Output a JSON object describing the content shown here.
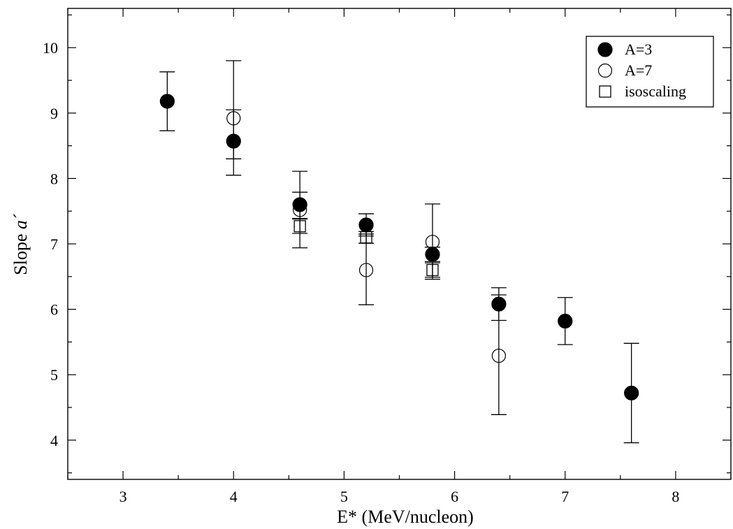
{
  "chart_data": {
    "type": "scatter",
    "xlabel": "E* (MeV/nucleon)",
    "ylabel_main": "Slope ",
    "ylabel_italic": "a´",
    "xlim": [
      2.5,
      8.5
    ],
    "ylim": [
      3.4,
      10.6
    ],
    "xticks": [
      3,
      4,
      5,
      6,
      7,
      8
    ],
    "yticks": [
      4,
      5,
      6,
      7,
      8,
      9,
      10
    ],
    "grid": false,
    "legend_position": "top-right",
    "series": [
      {
        "name": "A=3",
        "marker": "filled-circle",
        "points": [
          {
            "x": 3.4,
            "y": 9.18,
            "err_low": 8.73,
            "err_high": 9.63
          },
          {
            "x": 4.0,
            "y": 8.57,
            "err_low": 8.05,
            "err_high": 9.05
          },
          {
            "x": 4.6,
            "y": 7.6,
            "err_low": 7.39,
            "err_high": 7.79
          },
          {
            "x": 5.2,
            "y": 7.29,
            "err_low": 7.12,
            "err_high": 7.46
          },
          {
            "x": 5.8,
            "y": 6.84,
            "err_low": 6.73,
            "err_high": 6.95
          },
          {
            "x": 6.4,
            "y": 6.08,
            "err_low": 5.83,
            "err_high": 6.33
          },
          {
            "x": 7.0,
            "y": 5.82,
            "err_low": 5.46,
            "err_high": 6.18
          },
          {
            "x": 7.6,
            "y": 4.72,
            "err_low": 3.96,
            "err_high": 5.48
          }
        ]
      },
      {
        "name": "A=7",
        "marker": "open-circle",
        "points": [
          {
            "x": 4.0,
            "y": 8.92,
            "err_low": 8.3,
            "err_high": 9.8
          },
          {
            "x": 4.6,
            "y": 7.52,
            "err_low": 6.94,
            "err_high": 8.11
          },
          {
            "x": 5.2,
            "y": 6.6,
            "err_low": 6.07,
            "err_high": 7.15
          },
          {
            "x": 5.8,
            "y": 7.03,
            "err_low": 6.46,
            "err_high": 7.61
          },
          {
            "x": 6.4,
            "y": 5.29,
            "err_low": 4.39,
            "err_high": 6.22
          }
        ]
      },
      {
        "name": "isoscaling",
        "marker": "open-square",
        "points": [
          {
            "x": 4.6,
            "y": 7.27,
            "err_low": 7.16,
            "err_high": 7.38
          },
          {
            "x": 5.2,
            "y": 7.1,
            "err_low": 7.01,
            "err_high": 7.19
          },
          {
            "x": 5.8,
            "y": 6.6,
            "err_low": 6.49,
            "err_high": 6.71
          }
        ]
      }
    ]
  }
}
